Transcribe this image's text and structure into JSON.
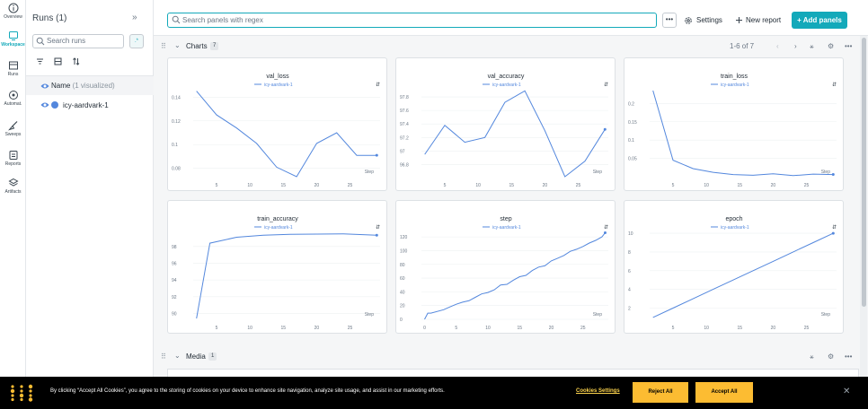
{
  "nav": {
    "items": [
      {
        "label": "Overview",
        "icon": "info-icon"
      },
      {
        "label": "Workspace",
        "icon": "workspace-icon",
        "active": true
      },
      {
        "label": "Runs",
        "icon": "table-icon"
      },
      {
        "label": "Automat.",
        "icon": "automation-icon"
      },
      {
        "label": "Sweeps",
        "icon": "broom-icon"
      },
      {
        "label": "Reports",
        "icon": "report-icon"
      },
      {
        "label": "Artifacts",
        "icon": "artifacts-icon"
      }
    ]
  },
  "runs_panel": {
    "title": "Runs (1)",
    "collapse_glyph": "»",
    "search_placeholder": "Search runs",
    "regex_glyph": ".*",
    "name_header": "Name",
    "name_header_note": "(1 visualized)",
    "runs": [
      {
        "name": "icy-aardvark-1",
        "color": "#5387dd"
      }
    ]
  },
  "toolbar": {
    "search_placeholder": "Search panels with regex",
    "more_glyph": "•••",
    "settings_label": "Settings",
    "new_report_label": "New report",
    "add_panels_label": "Add panels"
  },
  "charts_section": {
    "title": "Charts",
    "count": "7",
    "pagination": "1-6 of 7"
  },
  "media_section": {
    "title": "Media",
    "count": "1"
  },
  "chart_data": [
    {
      "type": "line",
      "title": "val_loss",
      "legend": "icy-aardvark-1",
      "xlabel": "Step",
      "x": [
        2,
        5,
        8,
        11,
        14,
        17,
        20,
        23,
        26,
        29
      ],
      "y": [
        0.145,
        0.125,
        0.114,
        0.101,
        0.081,
        0.073,
        0.101,
        0.11,
        0.091,
        0.091
      ],
      "xticks": [
        5,
        10,
        15,
        20,
        25
      ],
      "yticks": [
        0.08,
        0.1,
        0.12,
        0.14
      ],
      "yticklabels": [
        "0.08",
        "0.1",
        "0.12",
        "0.14"
      ],
      "xlim": [
        1.5,
        29.5
      ],
      "ylim": [
        0.073,
        0.147
      ]
    },
    {
      "type": "line",
      "title": "val_accuracy",
      "legend": "icy-aardvark-1",
      "xlabel": "Step",
      "x": [
        2,
        5,
        8,
        11,
        14,
        17,
        20,
        23,
        26,
        29
      ],
      "y": [
        96.95,
        97.38,
        97.13,
        97.2,
        97.72,
        97.89,
        97.3,
        96.62,
        96.85,
        97.32
      ],
      "xticks": [
        5,
        10,
        15,
        20,
        25
      ],
      "yticks": [
        96.8,
        97,
        97.2,
        97.4,
        97.6,
        97.8
      ],
      "yticklabels": [
        "96.8",
        "97",
        "97.2",
        "97.4",
        "97.6",
        "97.8"
      ],
      "xlim": [
        1.5,
        29.5
      ],
      "ylim": [
        96.62,
        97.92
      ]
    },
    {
      "type": "line",
      "title": "train_loss",
      "legend": "icy-aardvark-1",
      "xlabel": "Step",
      "x": [
        2,
        5,
        8,
        11,
        14,
        17,
        20,
        23,
        26,
        29
      ],
      "y": [
        0.235,
        0.045,
        0.022,
        0.012,
        0.006,
        0.004,
        0.008,
        0.003,
        0.007,
        0.006
      ],
      "xticks": [
        5,
        10,
        15,
        20,
        25
      ],
      "yticks": [
        0.05,
        0.1,
        0.15,
        0.2
      ],
      "yticklabels": [
        "0.05",
        "0.1",
        "0.15",
        "0.2"
      ],
      "xlim": [
        1.5,
        29.5
      ],
      "ylim": [
        0.0,
        0.24
      ]
    },
    {
      "type": "line",
      "title": "train_accuracy",
      "legend": "icy-aardvark-1",
      "xlabel": "Step",
      "x": [
        2,
        4,
        8,
        12,
        16,
        20,
        24,
        29
      ],
      "y": [
        89.4,
        98.4,
        99.1,
        99.35,
        99.45,
        99.48,
        99.5,
        99.35
      ],
      "xticks": [
        5,
        10,
        15,
        20,
        25
      ],
      "yticks": [
        90,
        92,
        94,
        96,
        98
      ],
      "yticklabels": [
        "90",
        "92",
        "94",
        "96",
        "98"
      ],
      "xlim": [
        1.5,
        29.5
      ],
      "ylim": [
        89.3,
        99.8
      ]
    },
    {
      "type": "line",
      "title": "step",
      "legend": "icy-aardvark-1",
      "xlabel": "Step",
      "x": [
        0,
        0.5,
        1,
        3,
        4,
        5,
        6,
        7,
        8,
        9,
        10,
        11,
        12,
        13,
        14,
        15,
        16,
        17,
        18,
        19,
        20,
        21,
        22,
        23,
        24,
        25,
        26,
        27,
        28,
        28.5
      ],
      "y": [
        0,
        9,
        9,
        14,
        18,
        22,
        25,
        27,
        32,
        37,
        39,
        43,
        50,
        51,
        57,
        62,
        64,
        71,
        76,
        78,
        85,
        89,
        93,
        99,
        102,
        106,
        111,
        115,
        120,
        126
      ],
      "xticks": [
        0,
        5,
        10,
        15,
        20,
        25
      ],
      "yticks": [
        0,
        20,
        40,
        60,
        80,
        100,
        120
      ],
      "yticklabels": [
        "0",
        "20",
        "40",
        "60",
        "80",
        "100",
        "120"
      ],
      "xlim": [
        -0.5,
        29
      ],
      "ylim": [
        0,
        128
      ]
    },
    {
      "type": "line",
      "title": "epoch",
      "legend": "icy-aardvark-1",
      "xlabel": "Step",
      "x": [
        2,
        5,
        8,
        11,
        14,
        17,
        20,
        23,
        26,
        29
      ],
      "y": [
        1,
        2,
        3,
        4,
        5,
        6,
        7,
        8,
        9,
        10
      ],
      "xticks": [
        5,
        10,
        15,
        20,
        25
      ],
      "yticks": [
        2,
        4,
        6,
        8,
        10
      ],
      "yticklabels": [
        "2",
        "4",
        "6",
        "8",
        "10"
      ],
      "xlim": [
        1.5,
        29.5
      ],
      "ylim": [
        0.8,
        10.2
      ]
    }
  ],
  "cookie_banner": {
    "text": "By clicking “Accept All Cookies”, you agree to the storing of cookies on your device to enhance site navigation, analyze site usage, and assist in our marketing efforts.",
    "settings_label": "Cookies Settings",
    "reject_label": "Reject All",
    "accept_label": "Accept All",
    "close_glyph": "✕"
  },
  "colors": {
    "accent": "#13a9ba",
    "series": "#5387dd",
    "cookie_button": "#fcbc32"
  }
}
